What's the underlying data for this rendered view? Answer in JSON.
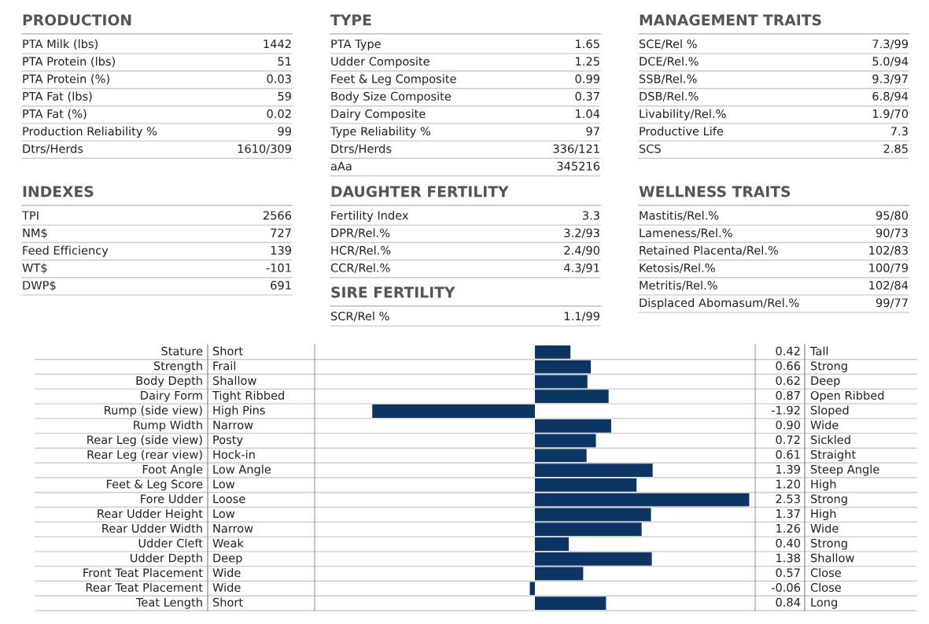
{
  "chart_data": [
    {
      "type": "other",
      "title": "PRODUCTION",
      "categories": [
        "PTA Milk (lbs)",
        "PTA Protein (lbs)",
        "PTA Protein (%)",
        "PTA Fat (lbs)",
        "PTA Fat (%)",
        "Production Reliability %",
        "Dtrs/Herds"
      ],
      "value_labels": [
        "1442",
        "51",
        "0.03",
        "59",
        "0.02",
        "99",
        "1610/309"
      ]
    },
    {
      "type": "other",
      "title": "TYPE",
      "categories": [
        "PTA Type",
        "Udder Composite",
        "Feet & Leg Composite",
        "Body Size Composite",
        "Dairy Composite",
        "Type Reliability %",
        "Dtrs/Herds",
        "aAa"
      ],
      "value_labels": [
        "1.65",
        "1.25",
        "0.99",
        "0.37",
        "1.04",
        "97",
        "336/121",
        "345216"
      ]
    },
    {
      "type": "other",
      "title": "MANAGEMENT TRAITS",
      "categories": [
        "SCE/Rel %",
        "DCE/Rel.%",
        "SSB/Rel.%",
        "DSB/Rel.%",
        "Livability/Rel.%",
        "Productive Life",
        "SCS"
      ],
      "value_labels": [
        "7.3/99",
        "5.0/94",
        "9.3/97",
        "6.8/94",
        "1.9/70",
        "7.3",
        "2.85"
      ]
    },
    {
      "type": "other",
      "title": "INDEXES",
      "categories": [
        "TPI",
        "NM$",
        "Feed Efficiency",
        "WT$",
        "DWP$"
      ],
      "value_labels": [
        "2566",
        "727",
        "139",
        "-101",
        "691"
      ]
    },
    {
      "type": "other",
      "title": "DAUGHTER FERTILITY",
      "categories": [
        "Fertility Index",
        "DPR/Rel.%",
        "HCR/Rel.%",
        "CCR/Rel.%"
      ],
      "value_labels": [
        "3.3",
        "3.2/93",
        "2.4/90",
        "4.3/91"
      ]
    },
    {
      "type": "other",
      "title": "WELLNESS TRAITS",
      "categories": [
        "Mastitis/Rel.%",
        "Lameness/Rel.%",
        "Retained Placenta/Rel.%",
        "Ketosis/Rel.%",
        "Metritis/Rel.%",
        "Displaced Abomasum/Rel.%"
      ],
      "value_labels": [
        "95/80",
        "90/73",
        "102/83",
        "100/79",
        "102/84",
        "99/77"
      ]
    },
    {
      "type": "other",
      "title": "SIRE FERTILITY",
      "categories": [
        "SCR/Rel %"
      ],
      "value_labels": [
        "1.1/99"
      ]
    },
    {
      "type": "bar",
      "orientation": "horizontal",
      "color": "#0d3563",
      "xlim": [
        -2.6,
        2.6
      ],
      "categories": [
        "Stature",
        "Strength",
        "Body Depth",
        "Dairy Form",
        "Rump (side view)",
        "Rump Width",
        "Rear Leg (side view)",
        "Rear Leg (rear view)",
        "Foot Angle",
        "Feet & Leg Score",
        "Fore Udder",
        "Rear Udder Height",
        "Rear Udder Width",
        "Udder Cleft",
        "Udder Depth",
        "Front Teat Placement",
        "Rear Teat Placement",
        "Teat Length"
      ],
      "values": [
        0.42,
        0.66,
        0.62,
        0.87,
        -1.92,
        0.9,
        0.72,
        0.61,
        1.39,
        1.2,
        2.53,
        1.37,
        1.26,
        0.4,
        1.38,
        0.57,
        -0.06,
        0.84
      ],
      "value_labels": [
        "0.42",
        "0.66",
        "0.62",
        "0.87",
        "-1.92",
        "0.90",
        "0.72",
        "0.61",
        "1.39",
        "1.20",
        "2.53",
        "1.37",
        "1.26",
        "0.40",
        "1.38",
        "0.57",
        "-0.06",
        "0.84"
      ],
      "y2_categories": [
        "Tall",
        "Strong",
        "Deep",
        "Open Ribbed",
        "Sloped",
        "Wide",
        "Sickled",
        "Straight",
        "Steep Angle",
        "High",
        "Strong",
        "High",
        "Wide",
        "Strong",
        "Shallow",
        "Close",
        "Close",
        "Long"
      ],
      "annotations": [
        "Short",
        "Frail",
        "Shallow",
        "Tight Ribbed",
        "High Pins",
        "Narrow",
        "Posty",
        "Hock-in",
        "Low Angle",
        "Low",
        "Loose",
        "Low",
        "Narrow",
        "Weak",
        "Deep",
        "Wide",
        "Wide",
        "Short"
      ]
    }
  ]
}
